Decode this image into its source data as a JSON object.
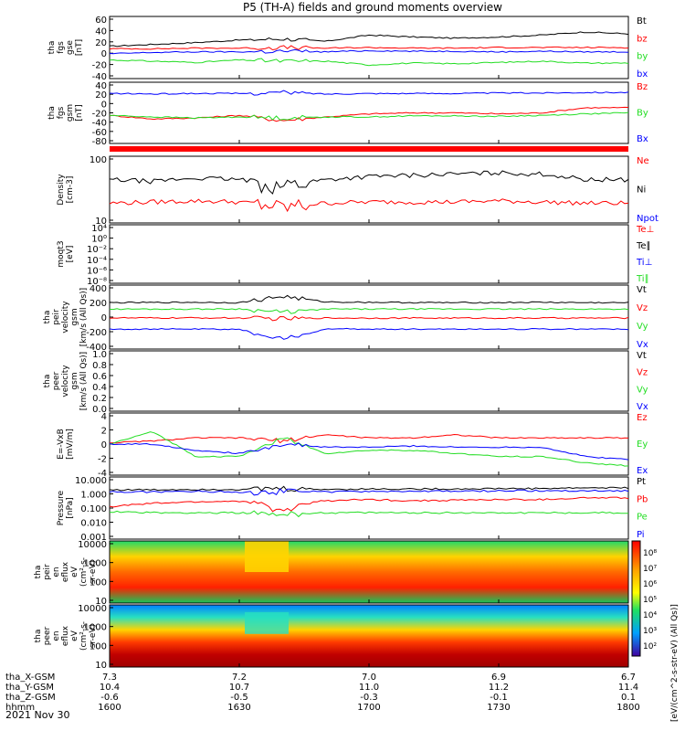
{
  "title": "P5 (TH-A) fields and ground moments overview",
  "date_label": "2021 Nov 30",
  "colors": {
    "black": "#000000",
    "red": "#ff0000",
    "green": "#22dd22",
    "blue": "#0000ff"
  },
  "chart_data": [
    {
      "type": "line",
      "panel": "fgs-gse",
      "ylabel": [
        "tha",
        "fgs",
        "gse",
        "[nT]"
      ],
      "ylim": [
        -40,
        60
      ],
      "yticks": [
        "60",
        "40",
        "20",
        "0",
        "-20",
        "-40"
      ],
      "legend": [
        "Bt",
        "bz",
        "by",
        "bx"
      ],
      "legend_colors": [
        "black",
        "red",
        "green",
        "blue"
      ],
      "series": [
        {
          "values": [
            12,
            15,
            18,
            22,
            24,
            20,
            30,
            27,
            25,
            27,
            30,
            35,
            32
          ]
        },
        {
          "values": [
            8,
            8,
            9,
            9,
            10,
            9,
            10,
            9,
            9,
            10,
            10,
            10,
            10
          ]
        },
        {
          "values": [
            -10,
            -12,
            -14,
            -10,
            -12,
            -12,
            -18,
            -15,
            -16,
            -14,
            -12,
            -15,
            -15
          ]
        },
        {
          "values": [
            0,
            2,
            3,
            3,
            4,
            3,
            5,
            4,
            4,
            3,
            4,
            3,
            3
          ]
        }
      ]
    },
    {
      "type": "line",
      "panel": "fgs-gsm",
      "ylabel": [
        "tha",
        "fgs",
        "gsm",
        "[nT]"
      ],
      "ylim": [
        -80,
        40
      ],
      "yticks": [
        "40",
        "20",
        "0",
        "-20",
        "-40",
        "-60",
        "-80"
      ],
      "legend": [
        "Bz",
        "By",
        "Bx"
      ],
      "legend_colors": [
        "red",
        "green",
        "blue"
      ],
      "series": [
        {
          "values": [
            -25,
            -32,
            -30,
            -25,
            -35,
            -28,
            -22,
            -20,
            -20,
            -22,
            -20,
            -10,
            -10
          ]
        },
        {
          "values": [
            -25,
            -28,
            -30,
            -28,
            -30,
            -28,
            -28,
            -26,
            -26,
            -27,
            -25,
            -22,
            -20
          ]
        },
        {
          "values": [
            18,
            17,
            18,
            18,
            20,
            17,
            18,
            18,
            18,
            19,
            19,
            20,
            20
          ]
        }
      ]
    },
    {
      "type": "line",
      "panel": "density",
      "ylabel": [
        "Density",
        "[cm-3]"
      ],
      "scale": "log",
      "ylim": [
        5,
        200
      ],
      "yticks": [
        "100",
        "10"
      ],
      "legend": [
        "Ne",
        "Ni",
        "Npot"
      ],
      "legend_colors": [
        "red",
        "black",
        "blue"
      ],
      "series": [
        {
          "values": [
            15,
            16,
            17,
            16,
            12,
            15,
            16,
            16,
            16,
            17,
            16,
            15,
            15
          ]
        },
        {
          "values": [
            55,
            50,
            60,
            55,
            40,
            55,
            65,
            70,
            75,
            80,
            75,
            55,
            55
          ]
        }
      ]
    },
    {
      "type": "line",
      "panel": "temperature",
      "ylabel": [
        "moqt3",
        "[eV]"
      ],
      "scale": "log",
      "yticks": [
        "10⁴",
        "10⁰",
        "10⁻²",
        "10⁻⁴",
        "10⁻⁶",
        "10⁻⁸"
      ],
      "legend": [
        "Te⊥",
        "Te∥",
        "Ti⊥",
        "Ti∥"
      ],
      "legend_colors": [
        "red",
        "black",
        "blue",
        "green"
      ]
    },
    {
      "type": "line",
      "panel": "velocity-gsm",
      "ylabel": [
        "tha",
        "peir",
        "velocity",
        "gsm",
        "[km/s (All Qs)]"
      ],
      "ylim": [
        -400,
        400
      ],
      "yticks": [
        "400",
        "200",
        "0",
        "-200",
        "-400"
      ],
      "legend": [
        "Vt",
        "Vz",
        "Vy",
        "Vx"
      ],
      "legend_colors": [
        "black",
        "red",
        "green",
        "blue"
      ],
      "series": [
        {
          "values": [
            180,
            182,
            185,
            180,
            260,
            190,
            185,
            182,
            180,
            182,
            185,
            180,
            180
          ]
        },
        {
          "values": [
            -10,
            -12,
            -10,
            -12,
            -20,
            -12,
            -12,
            -12,
            -12,
            -12,
            -12,
            -12,
            -12
          ]
        },
        {
          "values": [
            100,
            100,
            100,
            102,
            60,
            100,
            100,
            100,
            100,
            100,
            100,
            100,
            100
          ]
        },
        {
          "values": [
            -150,
            -150,
            -150,
            -155,
            -280,
            -150,
            -150,
            -150,
            -150,
            -150,
            -150,
            -150,
            -150
          ]
        }
      ]
    },
    {
      "type": "line",
      "panel": "velocity-gsm-empty",
      "ylabel": [
        "tha",
        "peer",
        "velocity",
        "gsm",
        "[km/s (All Qs)]"
      ],
      "ylim": [
        0,
        1
      ],
      "yticks": [
        "1.0",
        "0.8",
        "0.6",
        "0.4",
        "0.2",
        "0.0"
      ],
      "legend": [
        "Vt",
        "Vz",
        "Vy",
        "Vx"
      ],
      "legend_colors": [
        "black",
        "red",
        "green",
        "blue"
      ]
    },
    {
      "type": "line",
      "panel": "efield",
      "ylabel": [
        "E=-VxB",
        "[mV/m]"
      ],
      "ylim": [
        -5,
        5
      ],
      "yticks": [
        "4",
        "2",
        "0",
        "-2",
        "-4"
      ],
      "legend": [
        "Ez",
        "Ey",
        "Ex"
      ],
      "legend_colors": [
        "red",
        "green",
        "blue"
      ],
      "series": [
        {
          "values": [
            0.2,
            0.5,
            1,
            1,
            0.5,
            1.5,
            1,
            1,
            1.5,
            1,
            1,
            1,
            1
          ]
        },
        {
          "values": [
            0,
            2,
            -2,
            -2,
            1,
            -1.5,
            -1,
            -1,
            -1.5,
            -2,
            -2,
            -3,
            -3.5
          ]
        },
        {
          "values": [
            0,
            0,
            -1,
            -1.5,
            0,
            -0.5,
            -0.5,
            -0.3,
            -0.5,
            -0.5,
            -0.5,
            -2,
            -2.5
          ]
        }
      ]
    },
    {
      "type": "line",
      "panel": "pressure",
      "ylabel": [
        "Pressure",
        "[nPa]"
      ],
      "scale": "log",
      "ylim": [
        0.001,
        10
      ],
      "yticks": [
        "10.000",
        "1.000",
        "0.100",
        "0.010",
        "0.001"
      ],
      "legend": [
        "Pt",
        "Pb",
        "Pe",
        "Pi"
      ],
      "legend_colors": [
        "black",
        "red",
        "green",
        "blue"
      ],
      "series": [
        {
          "values": [
            1.5,
            1.5,
            1.6,
            1.6,
            1.8,
            1.6,
            1.7,
            1.7,
            1.7,
            1.8,
            1.8,
            2,
            2
          ]
        },
        {
          "values": [
            0.12,
            0.2,
            0.25,
            0.28,
            0.05,
            0.3,
            0.35,
            0.3,
            0.32,
            0.35,
            0.35,
            0.45,
            0.45
          ]
        },
        {
          "values": [
            0.06,
            0.05,
            0.05,
            0.05,
            0.04,
            0.05,
            0.05,
            0.05,
            0.05,
            0.05,
            0.05,
            0.05,
            0.05
          ]
        },
        {
          "values": [
            1.1,
            1.1,
            1.2,
            1.1,
            1.3,
            1.1,
            1.2,
            1.2,
            1.2,
            1.3,
            1.3,
            1.3,
            1.3
          ]
        }
      ]
    },
    {
      "type": "heatmap",
      "panel": "peir-spectrogram",
      "ylabel": [
        "tha",
        "peir",
        "en",
        "eflux",
        "eV",
        "(cm²-s-",
        "sr-eV)"
      ],
      "scale": "log",
      "yticks": [
        "10000",
        "1000",
        "100",
        "10"
      ]
    },
    {
      "type": "heatmap",
      "panel": "peer-spectrogram",
      "ylabel": [
        "tha",
        "peer",
        "en",
        "eflux",
        "eV",
        "(cm²-s-",
        "sr-eV)"
      ],
      "scale": "log",
      "yticks": [
        "10000",
        "1000",
        "100",
        "10"
      ]
    }
  ],
  "colorbar": {
    "label": "[eV/(cm^2-s-str-eV) (All Qs)]",
    "ticks": [
      "10⁸",
      "10⁷",
      "10⁶",
      "10⁵",
      "10⁴",
      "10³",
      "10²"
    ]
  },
  "xaxis": {
    "rows": [
      {
        "label": "tha_X-GSM",
        "values": [
          "7.3",
          "7.2",
          "7.0",
          "6.9",
          "6.7"
        ]
      },
      {
        "label": "tha_Y-GSM",
        "values": [
          "10.4",
          "10.7",
          "11.0",
          "11.2",
          "11.4"
        ]
      },
      {
        "label": "tha_Z-GSM",
        "values": [
          "-0.6",
          "-0.5",
          "-0.3",
          "-0.1",
          "0.1"
        ]
      },
      {
        "label": "hhmm",
        "values": [
          "1600",
          "1630",
          "1700",
          "1730",
          "1800"
        ]
      }
    ]
  }
}
